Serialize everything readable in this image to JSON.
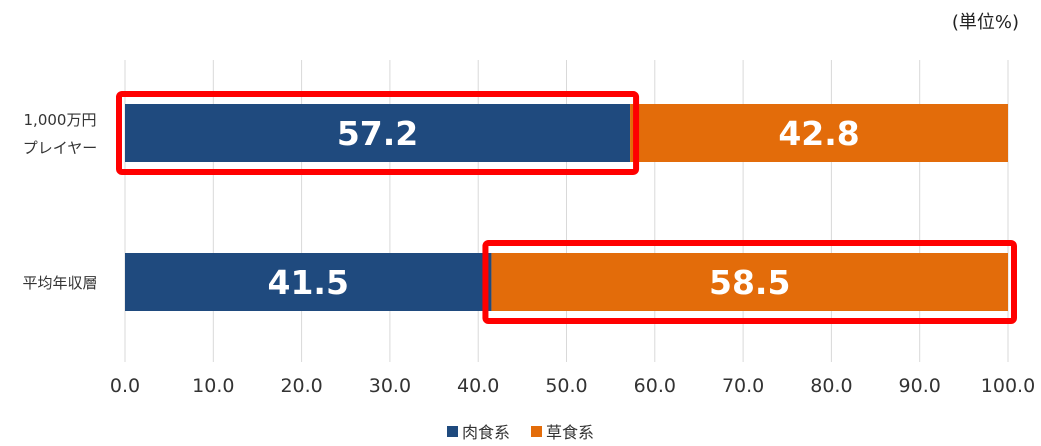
{
  "chart_data": {
    "type": "bar",
    "orientation": "horizontal",
    "stacked": true,
    "unit_note": "(単位%)",
    "categories": [
      [
        "1,000万円",
        "プレイヤー"
      ],
      [
        "平均年収層"
      ]
    ],
    "series": [
      {
        "name": "肉食系",
        "color": "#1F4A7E",
        "values": [
          57.2,
          41.5
        ]
      },
      {
        "name": "草食系",
        "color": "#E36C0A",
        "values": [
          42.8,
          58.5
        ]
      }
    ],
    "xlim": [
      0,
      100
    ],
    "xticks": [
      "0.0",
      "10.0",
      "20.0",
      "30.0",
      "40.0",
      "50.0",
      "60.0",
      "70.0",
      "80.0",
      "90.0",
      "100.0"
    ],
    "grid": "vertical",
    "legend_position": "bottom-center",
    "highlights": [
      {
        "category_index": 0,
        "series_index": 0,
        "color": "#FF0000"
      },
      {
        "category_index": 1,
        "series_index": 1,
        "color": "#FF0000"
      }
    ]
  }
}
